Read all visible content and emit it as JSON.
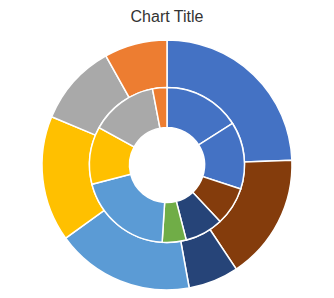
{
  "chart_data": {
    "type": "pie",
    "title": "Chart Title",
    "series": [
      {
        "values": [
          30,
          20,
          8,
          22,
          20,
          13,
          10
        ],
        "colors": [
          "#4472C4",
          "#843C0C",
          "#264478",
          "#5B9BD5",
          "#FFC000",
          "#A9A9A9",
          "#ED7D31"
        ]
      },
      {
        "values": [
          16,
          14,
          8,
          8,
          5,
          20,
          12,
          14,
          3
        ],
        "colors": [
          "#4472C4",
          "#4472C4",
          "#843C0C",
          "#264478",
          "#70AD47",
          "#5B9BD5",
          "#FFC000",
          "#A9A9A9",
          "#ED7D31"
        ]
      }
    ]
  }
}
